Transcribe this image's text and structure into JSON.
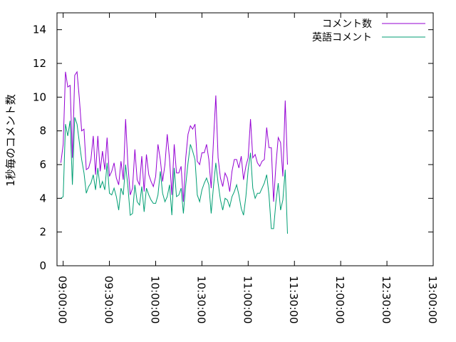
{
  "chart_data": {
    "type": "line",
    "ylabel": "1秒毎のコメント数",
    "xlabel": "",
    "ylim": [
      0,
      15
    ],
    "y_ticks": [
      0,
      2,
      4,
      6,
      8,
      10,
      12,
      14
    ],
    "y_tick_labels": [
      "0",
      "2",
      "4",
      "6",
      "8",
      "10",
      "12",
      "14"
    ],
    "x_range": [
      "08:56:00",
      "13:00:00"
    ],
    "x_ticks": [
      "09:00:00",
      "09:30:00",
      "10:00:00",
      "10:30:00",
      "11:00:00",
      "11:30:00",
      "12:00:00",
      "12:30:00",
      "13:00:00"
    ],
    "x_tick_labels": [
      "09:00:00",
      "09:30:00",
      "10:00:00",
      "10:30:00",
      "11:00:00",
      "11:30:00",
      "12:00:00",
      "12:30:00",
      "13:00:00"
    ],
    "grid": false,
    "legend_position": "top-right",
    "series": [
      {
        "name": "コメント数",
        "color": "#9400d3",
        "points": [
          [
            "08:58:30",
            6.1
          ],
          [
            "09:00:00",
            7.2
          ],
          [
            "09:01:30",
            11.5
          ],
          [
            "09:03:00",
            10.6
          ],
          [
            "09:04:30",
            10.7
          ],
          [
            "09:06:00",
            6.4
          ],
          [
            "09:07:30",
            11.3
          ],
          [
            "09:09:00",
            11.5
          ],
          [
            "09:10:30",
            9.9
          ],
          [
            "09:12:00",
            8.0
          ],
          [
            "09:13:30",
            8.1
          ],
          [
            "09:15:00",
            5.7
          ],
          [
            "09:16:30",
            5.8
          ],
          [
            "09:18:00",
            6.3
          ],
          [
            "09:19:30",
            7.7
          ],
          [
            "09:21:00",
            5.4
          ],
          [
            "09:22:30",
            7.7
          ],
          [
            "09:24:00",
            5.6
          ],
          [
            "09:25:30",
            6.8
          ],
          [
            "09:27:00",
            5.7
          ],
          [
            "09:28:30",
            7.6
          ],
          [
            "09:30:00",
            5.3
          ],
          [
            "09:31:30",
            5.6
          ],
          [
            "09:33:00",
            6.1
          ],
          [
            "09:34:30",
            5.2
          ],
          [
            "09:36:00",
            4.8
          ],
          [
            "09:37:30",
            6.2
          ],
          [
            "09:39:00",
            5.1
          ],
          [
            "09:40:30",
            8.7
          ],
          [
            "09:42:00",
            6.0
          ],
          [
            "09:43:30",
            4.2
          ],
          [
            "09:45:00",
            4.6
          ],
          [
            "09:46:30",
            6.9
          ],
          [
            "09:48:00",
            5.1
          ],
          [
            "09:49:30",
            4.8
          ],
          [
            "09:51:00",
            6.5
          ],
          [
            "09:52:30",
            4.4
          ],
          [
            "09:54:00",
            6.6
          ],
          [
            "09:55:30",
            5.4
          ],
          [
            "09:57:00",
            5.0
          ],
          [
            "09:58:30",
            4.7
          ],
          [
            "10:00:00",
            5.3
          ],
          [
            "10:01:30",
            7.2
          ],
          [
            "10:03:00",
            6.3
          ],
          [
            "10:04:30",
            5.0
          ],
          [
            "10:06:00",
            6.0
          ],
          [
            "10:07:30",
            7.8
          ],
          [
            "10:09:00",
            6.3
          ],
          [
            "10:10:30",
            4.2
          ],
          [
            "10:12:00",
            7.2
          ],
          [
            "10:13:30",
            5.5
          ],
          [
            "10:15:00",
            5.5
          ],
          [
            "10:16:30",
            5.9
          ],
          [
            "10:18:00",
            3.8
          ],
          [
            "10:19:30",
            6.4
          ],
          [
            "10:21:00",
            7.8
          ],
          [
            "10:22:30",
            8.3
          ],
          [
            "10:24:00",
            8.1
          ],
          [
            "10:25:30",
            8.4
          ],
          [
            "10:27:00",
            6.2
          ],
          [
            "10:28:30",
            6.0
          ],
          [
            "10:30:00",
            6.7
          ],
          [
            "10:31:30",
            6.7
          ],
          [
            "10:33:00",
            7.2
          ],
          [
            "10:34:30",
            6.3
          ],
          [
            "10:36:00",
            4.6
          ],
          [
            "10:37:30",
            7.4
          ],
          [
            "10:39:00",
            10.1
          ],
          [
            "10:40:30",
            6.4
          ],
          [
            "10:42:00",
            5.2
          ],
          [
            "10:43:30",
            4.7
          ],
          [
            "10:45:00",
            5.5
          ],
          [
            "10:46:30",
            5.2
          ],
          [
            "10:48:00",
            4.4
          ],
          [
            "10:49:30",
            5.6
          ],
          [
            "10:51:00",
            6.3
          ],
          [
            "10:52:30",
            6.3
          ],
          [
            "10:54:00",
            5.8
          ],
          [
            "10:55:30",
            6.5
          ],
          [
            "10:57:00",
            5.1
          ],
          [
            "10:58:30",
            5.9
          ],
          [
            "11:00:00",
            6.4
          ],
          [
            "11:01:30",
            8.7
          ],
          [
            "11:03:00",
            6.4
          ],
          [
            "11:04:30",
            6.6
          ],
          [
            "11:06:00",
            6.1
          ],
          [
            "11:07:30",
            5.9
          ],
          [
            "11:09:00",
            6.2
          ],
          [
            "11:10:30",
            6.3
          ],
          [
            "11:12:00",
            8.2
          ],
          [
            "11:13:30",
            7.0
          ],
          [
            "11:15:00",
            7.0
          ],
          [
            "11:16:30",
            3.8
          ],
          [
            "11:18:00",
            6.0
          ],
          [
            "11:19:30",
            7.6
          ],
          [
            "11:21:00",
            7.3
          ],
          [
            "11:22:30",
            5.3
          ],
          [
            "11:24:00",
            9.8
          ],
          [
            "11:25:30",
            6.0
          ]
        ]
      },
      {
        "name": "英語コメント",
        "color": "#009e73",
        "points": [
          [
            "08:58:30",
            4.0
          ],
          [
            "09:00:00",
            4.1
          ],
          [
            "09:01:30",
            8.4
          ],
          [
            "09:03:00",
            7.7
          ],
          [
            "09:04:30",
            8.6
          ],
          [
            "09:06:00",
            4.8
          ],
          [
            "09:07:30",
            8.8
          ],
          [
            "09:09:00",
            8.4
          ],
          [
            "09:10:30",
            7.3
          ],
          [
            "09:12:00",
            6.3
          ],
          [
            "09:13:30",
            5.5
          ],
          [
            "09:15:00",
            4.3
          ],
          [
            "09:16:30",
            4.7
          ],
          [
            "09:18:00",
            4.9
          ],
          [
            "09:19:30",
            5.4
          ],
          [
            "09:21:00",
            4.5
          ],
          [
            "09:22:30",
            5.8
          ],
          [
            "09:24:00",
            4.6
          ],
          [
            "09:25:30",
            5.0
          ],
          [
            "09:27:00",
            4.5
          ],
          [
            "09:28:30",
            6.1
          ],
          [
            "09:30:00",
            4.3
          ],
          [
            "09:31:30",
            4.2
          ],
          [
            "09:33:00",
            4.6
          ],
          [
            "09:34:30",
            4.1
          ],
          [
            "09:36:00",
            3.3
          ],
          [
            "09:37:30",
            4.6
          ],
          [
            "09:39:00",
            4.2
          ],
          [
            "09:40:30",
            6.0
          ],
          [
            "09:42:00",
            4.7
          ],
          [
            "09:43:30",
            3.0
          ],
          [
            "09:45:00",
            3.1
          ],
          [
            "09:46:30",
            4.8
          ],
          [
            "09:48:00",
            3.8
          ],
          [
            "09:49:30",
            3.6
          ],
          [
            "09:51:00",
            4.7
          ],
          [
            "09:52:30",
            3.2
          ],
          [
            "09:54:00",
            4.6
          ],
          [
            "09:55:30",
            4.2
          ],
          [
            "09:57:00",
            3.9
          ],
          [
            "09:58:30",
            3.7
          ],
          [
            "10:00:00",
            3.7
          ],
          [
            "10:01:30",
            4.2
          ],
          [
            "10:03:00",
            5.6
          ],
          [
            "10:04:30",
            4.3
          ],
          [
            "10:06:00",
            3.8
          ],
          [
            "10:07:30",
            4.1
          ],
          [
            "10:09:00",
            4.8
          ],
          [
            "10:10:30",
            3.0
          ],
          [
            "10:12:00",
            5.8
          ],
          [
            "10:13:30",
            4.1
          ],
          [
            "10:15:00",
            4.2
          ],
          [
            "10:16:30",
            4.6
          ],
          [
            "10:18:00",
            3.1
          ],
          [
            "10:19:30",
            4.8
          ],
          [
            "10:21:00",
            6.1
          ],
          [
            "10:22:30",
            7.2
          ],
          [
            "10:24:00",
            6.8
          ],
          [
            "10:25:30",
            6.3
          ],
          [
            "10:27:00",
            4.2
          ],
          [
            "10:28:30",
            3.8
          ],
          [
            "10:30:00",
            4.5
          ],
          [
            "10:31:30",
            4.9
          ],
          [
            "10:33:00",
            5.2
          ],
          [
            "10:34:30",
            4.8
          ],
          [
            "10:36:00",
            3.1
          ],
          [
            "10:37:30",
            4.7
          ],
          [
            "10:39:00",
            6.1
          ],
          [
            "10:40:30",
            4.9
          ],
          [
            "10:42:00",
            3.9
          ],
          [
            "10:43:30",
            3.3
          ],
          [
            "10:45:00",
            4.0
          ],
          [
            "10:46:30",
            3.9
          ],
          [
            "10:48:00",
            3.5
          ],
          [
            "10:49:30",
            4.1
          ],
          [
            "10:51:00",
            4.4
          ],
          [
            "10:52:30",
            4.8
          ],
          [
            "10:54:00",
            4.2
          ],
          [
            "10:55:30",
            3.4
          ],
          [
            "10:57:00",
            3.0
          ],
          [
            "10:58:30",
            4.1
          ],
          [
            "11:00:00",
            5.7
          ],
          [
            "11:01:30",
            6.7
          ],
          [
            "11:03:00",
            4.6
          ],
          [
            "11:04:30",
            4.0
          ],
          [
            "11:06:00",
            4.3
          ],
          [
            "11:07:30",
            4.3
          ],
          [
            "11:09:00",
            4.6
          ],
          [
            "11:10:30",
            4.9
          ],
          [
            "11:12:00",
            5.4
          ],
          [
            "11:13:30",
            4.2
          ],
          [
            "11:15:00",
            2.2
          ],
          [
            "11:16:30",
            2.2
          ],
          [
            "11:18:00",
            3.8
          ],
          [
            "11:19:30",
            4.9
          ],
          [
            "11:21:00",
            3.3
          ],
          [
            "11:22:30",
            3.9
          ],
          [
            "11:24:00",
            5.7
          ],
          [
            "11:25:30",
            1.9
          ]
        ]
      }
    ]
  }
}
